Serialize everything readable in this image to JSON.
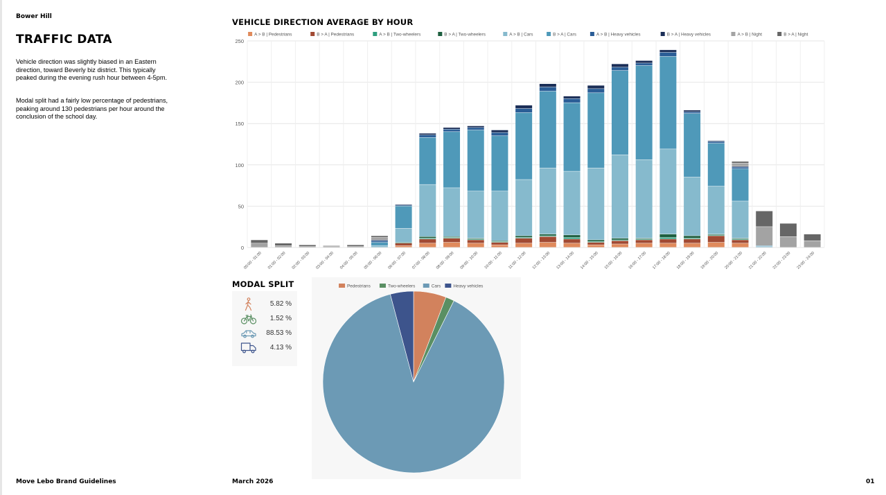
{
  "page": {
    "location": "Bower Hill",
    "title": "TRAFFIC DATA",
    "paragraph1": "Vehicle direction was slightly biased in an Eastern direction, toward Beverly biz district. This typically peaked during the evening rush hour between 4-5pm.",
    "paragraph2": "Modal split had a fairly low percentage of pedestrians, peaking around 130 pedestrians per hour around the conclusion of the school day.",
    "footer_left": "Move Lebo Brand Guidelines",
    "footer_date": "March 2026",
    "footer_page": "01"
  },
  "bar_chart_title": "VEHICLE DIRECTION AVERAGE BY HOUR",
  "modal_split": {
    "title": "MODAL SPLIT",
    "items": [
      {
        "icon": "pedestrian-icon",
        "value": "5.82 %",
        "color": "#d2825d"
      },
      {
        "icon": "bicycle-icon",
        "value": "1.52 %",
        "color": "#5a8f63"
      },
      {
        "icon": "car-icon",
        "value": "88.53 %",
        "color": "#6c9ab5"
      },
      {
        "icon": "truck-icon",
        "value": "4.13 %",
        "color": "#3d548c"
      }
    ]
  },
  "chart_data": [
    {
      "type": "bar",
      "stacked": true,
      "legend_position": "top",
      "grid": true,
      "ylim": [
        0,
        250
      ],
      "yticks": [
        "0",
        "50",
        "100",
        "150",
        "200",
        "250"
      ],
      "categories": [
        "00:00 - 01:00",
        "01:00 - 02:00",
        "02:00 - 03:00",
        "03:00 - 04:00",
        "04:00 - 05:00",
        "05:00 - 06:00",
        "06:00 - 07:00",
        "07:00 - 08:00",
        "08:00 - 09:00",
        "09:00 - 10:00",
        "10:00 - 11:00",
        "11:00 - 12:00",
        "12:00 - 13:00",
        "13:00 - 14:00",
        "14:00 - 15:00",
        "15:00 - 16:00",
        "16:00 - 17:00",
        "17:00 - 18:00",
        "18:00 - 19:00",
        "19:00 - 20:00",
        "20:00 - 21:00",
        "21:00 - 22:00",
        "22:00 - 23:00",
        "23:00 - 24:00"
      ],
      "series": [
        {
          "name": "A > B | Pedestrians",
          "color": "#e08a5c",
          "values": [
            0,
            0,
            0,
            0,
            0,
            0,
            2,
            5,
            6,
            5,
            3,
            5,
            6,
            5,
            3,
            4,
            5,
            5,
            5,
            6,
            5,
            0,
            0,
            0
          ]
        },
        {
          "name": "B > A | Pedestrians",
          "color": "#a14a33",
          "values": [
            0,
            0,
            0,
            0,
            0,
            0,
            3,
            5,
            5,
            4,
            3,
            6,
            7,
            5,
            3,
            4,
            4,
            5,
            5,
            8,
            4,
            0,
            0,
            0
          ]
        },
        {
          "name": "A > B | Two-wheelers",
          "color": "#2e9e7e",
          "values": [
            0,
            0,
            0,
            0,
            0,
            0,
            0,
            1,
            1,
            1,
            1,
            1,
            1,
            2,
            1,
            1,
            1,
            2,
            1,
            1,
            1,
            0,
            0,
            0
          ]
        },
        {
          "name": "B > A | Two-wheelers",
          "color": "#1e5f3f",
          "values": [
            0,
            0,
            0,
            0,
            0,
            0,
            1,
            2,
            1,
            1,
            1,
            2,
            2,
            3,
            2,
            2,
            1,
            4,
            3,
            1,
            1,
            0,
            0,
            0
          ]
        },
        {
          "name": "A > B | Cars",
          "color": "#86bacd",
          "values": [
            0,
            0,
            0,
            0,
            0,
            2,
            17,
            63,
            59,
            57,
            60,
            68,
            80,
            77,
            87,
            101,
            95,
            103,
            71,
            58,
            45,
            1,
            0,
            0
          ]
        },
        {
          "name": "B > A | Cars",
          "color": "#4f99b9",
          "values": [
            0,
            0,
            0,
            0,
            0,
            4,
            27,
            57,
            68,
            74,
            67,
            81,
            93,
            83,
            91,
            102,
            114,
            112,
            77,
            52,
            39,
            1,
            0,
            0
          ]
        },
        {
          "name": "A > B | Heavy vehicles",
          "color": "#2a5d96",
          "values": [
            0,
            0,
            0,
            0,
            0,
            2,
            1,
            3,
            3,
            3,
            4,
            5,
            5,
            5,
            5,
            4,
            3,
            5,
            2,
            2,
            2,
            0,
            0,
            0
          ]
        },
        {
          "name": "B > A | Heavy vehicles",
          "color": "#1b2e57",
          "values": [
            0,
            0,
            0,
            0,
            0,
            1,
            1,
            2,
            2,
            2,
            3,
            4,
            4,
            3,
            4,
            4,
            3,
            3,
            2,
            1,
            1,
            0,
            0,
            0
          ]
        },
        {
          "name": "A > B | Night",
          "color": "#a3a3a3",
          "values": [
            5,
            2,
            1,
            1,
            1,
            3,
            0,
            0,
            0,
            0,
            0,
            0,
            0,
            0,
            0,
            0,
            0,
            0,
            0,
            0,
            4,
            23,
            13,
            8
          ]
        },
        {
          "name": "B > A | Night",
          "color": "#666666",
          "values": [
            4,
            3,
            2,
            1,
            2,
            2,
            0,
            0,
            0,
            0,
            0,
            0,
            0,
            0,
            0,
            0,
            0,
            0,
            0,
            0,
            2,
            19,
            16,
            8
          ]
        }
      ]
    },
    {
      "type": "pie",
      "legend_position": "top",
      "series": [
        {
          "name": "Pedestrians",
          "color": "#d2825d",
          "value": 5.82
        },
        {
          "name": "Two-wheelers",
          "color": "#5a8f63",
          "value": 1.52
        },
        {
          "name": "Cars",
          "color": "#6c9ab5",
          "value": 88.53
        },
        {
          "name": "Heavy vehicles",
          "color": "#3d548c",
          "value": 4.13
        }
      ]
    }
  ]
}
